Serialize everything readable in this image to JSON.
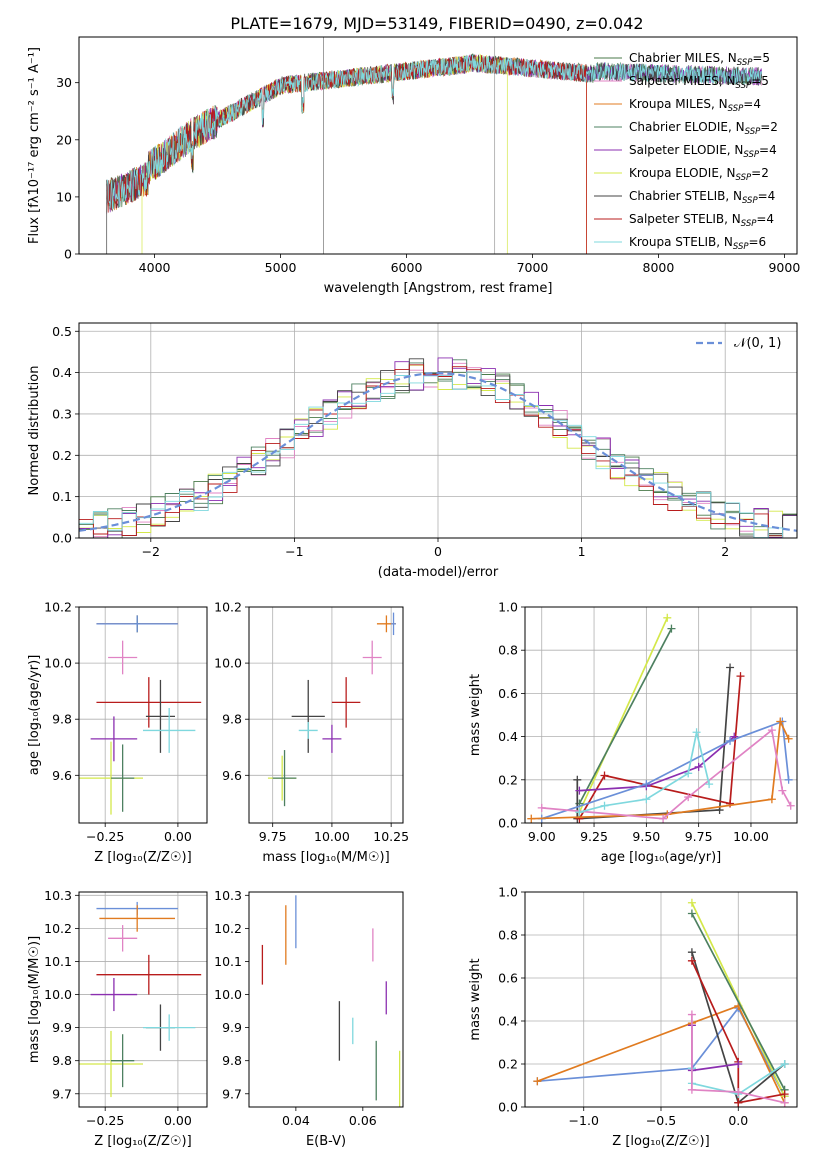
{
  "figure_title": "PLATE=1679, MJD=53149, FIBERID=0490, z=0.042",
  "colors": {
    "Chabrier MILES": "#4a7a4a",
    "Salpeter MILES": "#e083c4",
    "Kroupa MILES": "#e07b20",
    "Chabrier ELODIE": "#4d8060",
    "Salpeter ELODIE": "#8b2fb0",
    "Kroupa ELODIE": "#d4e84a",
    "Chabrier STELIB": "#444444",
    "Salpeter STELIB": "#b81c1c",
    "Kroupa STELIB": "#7fd8de",
    "Blue": "#6a8fd8"
  },
  "chart_data": [
    {
      "type": "line",
      "xlabel": "wavelength [Angstrom, rest frame]",
      "ylabel": "Flux [fλ10⁻¹⁷ erg cm⁻² s⁻¹ A⁻¹]",
      "xlim": [
        3400,
        9100
      ],
      "ylim": [
        0,
        38
      ],
      "xticks": [
        "4000",
        "5000",
        "6000",
        "7000",
        "8000",
        "9000"
      ],
      "yticks": [
        "0",
        "10",
        "20",
        "30"
      ],
      "legend_position": "top-right",
      "series": [
        {
          "name": "Chabrier MILES, N_SSP=5",
          "label": "Chabrier MILES, N",
          "sub": "SSP",
          "suffix": "=5",
          "x_range": [
            3620,
            8820
          ]
        },
        {
          "name": "Salpeter MILES, N_SSP=5",
          "label": "Salpeter MILES, N",
          "sub": "SSP",
          "suffix": "=5",
          "x_range": [
            3620,
            8820
          ]
        },
        {
          "name": "Kroupa MILES, N_SSP=4",
          "label": "Kroupa MILES, N",
          "sub": "SSP",
          "suffix": "=4",
          "x_range": [
            3620,
            7430
          ]
        },
        {
          "name": "Chabrier ELODIE, N_SSP=2",
          "label": "Chabrier ELODIE, N",
          "sub": "SSP",
          "suffix": "=2",
          "x_range": [
            3620,
            8820
          ]
        },
        {
          "name": "Salpeter ELODIE, N_SSP=4",
          "label": "Salpeter ELODIE, N",
          "sub": "SSP",
          "suffix": "=4",
          "x_range": [
            3620,
            8820
          ]
        },
        {
          "name": "Kroupa ELODIE, N_SSP=2",
          "label": "Kroupa ELODIE, N",
          "sub": "SSP",
          "suffix": "=2",
          "x_range": [
            3900,
            6800
          ]
        },
        {
          "name": "Chabrier STELIB, N_SSP=4",
          "label": "Chabrier STELIB, N",
          "sub": "SSP",
          "suffix": "=4",
          "x_range": [
            3620,
            8820
          ]
        },
        {
          "name": "Salpeter STELIB, N_SSP=4",
          "label": "Salpeter STELIB, N",
          "sub": "SSP",
          "suffix": "=4",
          "x_range": [
            3620,
            7430
          ]
        },
        {
          "name": "Kroupa STELIB, N_SSP=6",
          "label": "Kroupa STELIB, N",
          "sub": "SSP",
          "suffix": "=6",
          "x_range": [
            3620,
            8820
          ]
        }
      ]
    },
    {
      "type": "histogram",
      "xlabel": "(data-model)/error",
      "ylabel": "Normed distribution",
      "xlim": [
        -2.5,
        2.5
      ],
      "ylim": [
        0,
        0.52
      ],
      "xticks": [
        "−2",
        "−1",
        "0",
        "1",
        "2"
      ],
      "yticks": [
        "0.0",
        "0.1",
        "0.2",
        "0.3",
        "0.4",
        "0.5"
      ],
      "grid": true,
      "legend_position": "top-right",
      "reference_curve": {
        "name": "𝒩(0, 1)",
        "mean": 0,
        "sigma": 1
      },
      "bin_width": 0.1
    },
    {
      "type": "errorbar",
      "xlabel": "Z [log₁₀(Z/Z☉)]",
      "ylabel": "age  [log₁₀(age/yr)]",
      "xlim": [
        -0.34,
        0.1
      ],
      "ylim": [
        9.43,
        10.2
      ],
      "xticks": [
        "−0.25",
        "0.00"
      ],
      "yticks": [
        "9.6",
        "9.8",
        "10.0",
        "10.2"
      ],
      "grid": true,
      "points": [
        {
          "model": "Kroupa MILES",
          "x": -0.14,
          "xerr": 0.14,
          "y": 10.14,
          "yerr": 0.03
        },
        {
          "model": "Chabrier MILES",
          "x": -0.14,
          "xerr": 0.01,
          "y": 10.14,
          "yerr": 0.03
        },
        {
          "model": "Blue",
          "x": -0.14,
          "xerr": 0.14,
          "y": 10.14,
          "yerr": 0.03
        },
        {
          "model": "Salpeter MILES",
          "x": -0.19,
          "xerr": 0.05,
          "y": 10.02,
          "yerr": 0.06
        },
        {
          "model": "Salpeter STELIB",
          "x": -0.1,
          "xerr": 0.18,
          "y": 9.86,
          "yerr": 0.09
        },
        {
          "model": "Chabrier STELIB",
          "x": -0.06,
          "xerr": 0.05,
          "y": 9.81,
          "yerr": 0.13
        },
        {
          "model": "Kroupa STELIB",
          "x": -0.03,
          "xerr": 0.09,
          "y": 9.76,
          "yerr": 0.08
        },
        {
          "model": "Salpeter ELODIE",
          "x": -0.22,
          "xerr": 0.08,
          "y": 9.73,
          "yerr": 0.08
        },
        {
          "model": "Kroupa ELODIE",
          "x": -0.23,
          "xerr": 0.11,
          "y": 9.59,
          "yerr": 0.13
        },
        {
          "model": "Chabrier ELODIE",
          "x": -0.19,
          "xerr": 0.04,
          "y": 9.59,
          "yerr": 0.12
        }
      ]
    },
    {
      "type": "errorbar",
      "xlabel": "mass [log₁₀(M/M☉)]",
      "ylabel": "",
      "xlim": [
        9.65,
        10.3
      ],
      "ylim": [
        9.43,
        10.2
      ],
      "xticks": [
        "9.75",
        "10.00",
        "10.25"
      ],
      "yticks": [
        "9.6",
        "9.8",
        "10.0",
        "10.2"
      ],
      "grid": true,
      "points": [
        {
          "model": "Kroupa MILES",
          "x": 10.23,
          "xerr": 0.04,
          "y": 10.14,
          "yerr": 0.03
        },
        {
          "model": "Blue",
          "x": 10.26,
          "xerr": 0.01,
          "y": 10.14,
          "yerr": 0.04
        },
        {
          "model": "Salpeter MILES",
          "x": 10.17,
          "xerr": 0.04,
          "y": 10.02,
          "yerr": 0.06
        },
        {
          "model": "Salpeter STELIB",
          "x": 10.06,
          "xerr": 0.06,
          "y": 9.86,
          "yerr": 0.09
        },
        {
          "model": "Chabrier STELIB",
          "x": 9.9,
          "xerr": 0.07,
          "y": 9.81,
          "yerr": 0.13
        },
        {
          "model": "Kroupa STELIB",
          "x": 9.9,
          "xerr": 0.04,
          "y": 9.76,
          "yerr": 0.03
        },
        {
          "model": "Salpeter ELODIE",
          "x": 10.0,
          "xerr": 0.04,
          "y": 9.73,
          "yerr": 0.05
        },
        {
          "model": "Kroupa ELODIE",
          "x": 9.79,
          "xerr": 0.06,
          "y": 9.59,
          "yerr": 0.08
        },
        {
          "model": "Chabrier ELODIE",
          "x": 9.8,
          "xerr": 0.05,
          "y": 9.59,
          "yerr": 0.1
        }
      ]
    },
    {
      "type": "line",
      "xlabel": "age  [log₁₀(age/yr)]",
      "ylabel": "mass weight",
      "xlim": [
        8.92,
        10.22
      ],
      "ylim": [
        0,
        1
      ],
      "xticks": [
        "9.00",
        "9.25",
        "9.50",
        "9.75",
        "10.00"
      ],
      "yticks": [
        "0.0",
        "0.2",
        "0.4",
        "0.6",
        "0.8",
        "1.0"
      ],
      "grid": true,
      "series": [
        {
          "model": "Kroupa ELODIE",
          "x": [
            9.18,
            9.6
          ],
          "y": [
            0.05,
            0.95
          ]
        },
        {
          "model": "Chabrier ELODIE",
          "x": [
            9.18,
            9.62
          ],
          "y": [
            0.09,
            0.9
          ]
        },
        {
          "model": "Chabrier STELIB",
          "x": [
            9.17,
            9.17,
            9.85,
            9.9
          ],
          "y": [
            0.2,
            0.02,
            0.06,
            0.72
          ]
        },
        {
          "model": "Salpeter STELIB",
          "x": [
            9.18,
            9.3,
            9.9,
            9.95
          ],
          "y": [
            0.02,
            0.22,
            0.09,
            0.68
          ]
        },
        {
          "model": "Salpeter ELODIE",
          "x": [
            9.18,
            9.5,
            9.75,
            9.92
          ],
          "y": [
            0.15,
            0.17,
            0.26,
            0.4
          ]
        },
        {
          "model": "Blue",
          "x": [
            9.0,
            9.5,
            9.9,
            10.15,
            10.18
          ],
          "y": [
            0.02,
            0.18,
            0.38,
            0.47,
            0.2
          ]
        },
        {
          "model": "Kroupa MILES",
          "x": [
            8.95,
            9.6,
            10.1,
            10.14,
            10.18
          ],
          "y": [
            0.02,
            0.04,
            0.11,
            0.47,
            0.39
          ]
        },
        {
          "model": "Salpeter MILES",
          "x": [
            9.0,
            9.58,
            9.7,
            10.1,
            10.15,
            10.19
          ],
          "y": [
            0.07,
            0.02,
            0.12,
            0.43,
            0.15,
            0.08
          ]
        },
        {
          "model": "Kroupa STELIB",
          "x": [
            9.18,
            9.3,
            9.5,
            9.7,
            9.74,
            9.8
          ],
          "y": [
            0.05,
            0.08,
            0.11,
            0.23,
            0.42,
            0.18
          ]
        }
      ]
    },
    {
      "type": "errorbar",
      "xlabel": "Z [log₁₀(Z/Z☉)]",
      "ylabel": "mass [log₁₀(M/M☉)]",
      "xlim": [
        -0.34,
        0.1
      ],
      "ylim": [
        9.66,
        10.31
      ],
      "xticks": [
        "−0.25",
        "0.00"
      ],
      "yticks": [
        "9.7",
        "9.8",
        "9.9",
        "10.0",
        "10.1",
        "10.2",
        "10.3"
      ],
      "grid": true,
      "points": [
        {
          "model": "Blue",
          "x": -0.14,
          "xerr": 0.14,
          "y": 10.26,
          "yerr": 0.02
        },
        {
          "model": "Kroupa MILES",
          "x": -0.14,
          "xerr": 0.13,
          "y": 10.23,
          "yerr": 0.04
        },
        {
          "model": "Salpeter MILES",
          "x": -0.19,
          "xerr": 0.05,
          "y": 10.17,
          "yerr": 0.04
        },
        {
          "model": "Salpeter STELIB",
          "x": -0.1,
          "xerr": 0.18,
          "y": 10.06,
          "yerr": 0.06
        },
        {
          "model": "Salpeter ELODIE",
          "x": -0.22,
          "xerr": 0.08,
          "y": 10.0,
          "yerr": 0.05
        },
        {
          "model": "Chabrier STELIB",
          "x": -0.06,
          "xerr": 0.05,
          "y": 9.9,
          "yerr": 0.07
        },
        {
          "model": "Kroupa STELIB",
          "x": -0.03,
          "xerr": 0.09,
          "y": 9.9,
          "yerr": 0.04
        },
        {
          "model": "Kroupa ELODIE",
          "x": -0.23,
          "xerr": 0.11,
          "y": 9.79,
          "yerr": 0.1
        },
        {
          "model": "Chabrier ELODIE",
          "x": -0.19,
          "xerr": 0.04,
          "y": 9.8,
          "yerr": 0.08
        }
      ]
    },
    {
      "type": "errorbar",
      "xlabel": "E(B-V)",
      "ylabel": "",
      "xlim": [
        0.026,
        0.072
      ],
      "ylim": [
        9.66,
        10.31
      ],
      "xticks": [
        "0.04",
        "0.06"
      ],
      "yticks": [
        "9.7",
        "9.8",
        "9.9",
        "10.0",
        "10.1",
        "10.2",
        "10.3"
      ],
      "grid": false,
      "points": [
        {
          "model": "Salpeter STELIB",
          "x": 0.03,
          "xerr": 0.0,
          "y": 10.09,
          "yerr": 0.06
        },
        {
          "model": "Kroupa MILES",
          "x": 0.037,
          "xerr": 0.0,
          "y": 10.18,
          "yerr": 0.09
        },
        {
          "model": "Blue",
          "x": 0.04,
          "xerr": 0.0,
          "y": 10.22,
          "yerr": 0.08
        },
        {
          "model": "Chabrier STELIB",
          "x": 0.053,
          "xerr": 0.0,
          "y": 9.89,
          "yerr": 0.09
        },
        {
          "model": "Kroupa STELIB",
          "x": 0.057,
          "xerr": 0.0,
          "y": 9.89,
          "yerr": 0.04
        },
        {
          "model": "Salpeter MILES",
          "x": 0.063,
          "xerr": 0.0,
          "y": 10.15,
          "yerr": 0.05
        },
        {
          "model": "Salpeter ELODIE",
          "x": 0.067,
          "xerr": 0.0,
          "y": 9.99,
          "yerr": 0.05
        },
        {
          "model": "Chabrier ELODIE",
          "x": 0.064,
          "xerr": 0.0,
          "y": 9.77,
          "yerr": 0.09
        },
        {
          "model": "Kroupa ELODIE",
          "x": 0.071,
          "xerr": 0.0,
          "y": 9.74,
          "yerr": 0.09
        }
      ]
    },
    {
      "type": "line",
      "xlabel": "Z [log₁₀(Z/Z☉)]",
      "ylabel": "mass weight",
      "xlim": [
        -1.38,
        0.38
      ],
      "ylim": [
        0,
        1
      ],
      "xticks": [
        "−1.0",
        "−0.5",
        "0.0"
      ],
      "yticks": [
        "0.0",
        "0.2",
        "0.4",
        "0.6",
        "0.8",
        "1.0"
      ],
      "grid": true,
      "series": [
        {
          "model": "Blue",
          "x": [
            -1.3,
            -0.3,
            0.0,
            0.3
          ],
          "y": [
            0.12,
            0.18,
            0.46,
            0.05
          ]
        },
        {
          "model": "Kroupa MILES",
          "x": [
            -1.3,
            -0.3,
            0.0,
            0.3
          ],
          "y": [
            0.12,
            0.39,
            0.47,
            0.02
          ]
        },
        {
          "model": "Kroupa ELODIE",
          "x": [
            -0.3,
            0.3
          ],
          "y": [
            0.95,
            0.05
          ]
        },
        {
          "model": "Chabrier ELODIE",
          "x": [
            -0.3,
            0.3
          ],
          "y": [
            0.9,
            0.08
          ]
        },
        {
          "model": "Chabrier STELIB",
          "x": [
            -0.3,
            0.0,
            0.3
          ],
          "y": [
            0.72,
            0.02,
            0.2
          ]
        },
        {
          "model": "Salpeter STELIB",
          "x": [
            -0.3,
            0.0,
            0.0,
            0.3
          ],
          "y": [
            0.68,
            0.21,
            0.02,
            0.06
          ]
        },
        {
          "model": "Salpeter ELODIE",
          "x": [
            -0.3,
            -0.3,
            0.0
          ],
          "y": [
            0.38,
            0.17,
            0.2
          ]
        },
        {
          "model": "Kroupa STELIB",
          "x": [
            -0.3,
            -0.3,
            0.0,
            0.3
          ],
          "y": [
            0.18,
            0.11,
            0.06,
            0.2
          ]
        },
        {
          "model": "Salpeter MILES",
          "x": [
            -0.3,
            -0.3,
            0.0,
            0.3
          ],
          "y": [
            0.43,
            0.08,
            0.07,
            0.02
          ]
        }
      ]
    }
  ]
}
